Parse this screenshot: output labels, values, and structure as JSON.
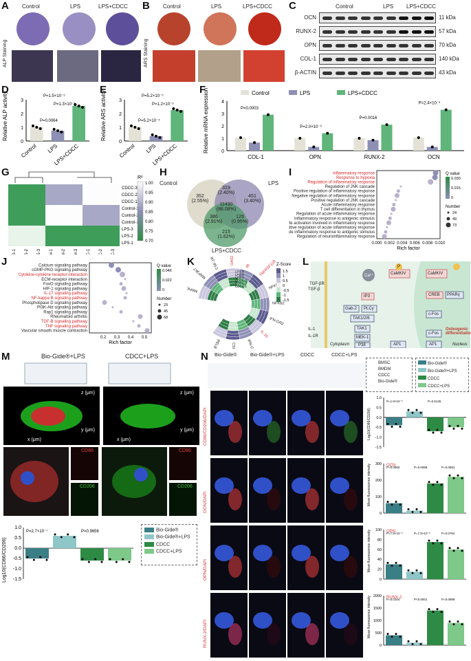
{
  "panelA": {
    "letter": "A",
    "side": "ALP Staining",
    "groups": [
      "Control",
      "LPS",
      "LPS+CDCC"
    ]
  },
  "panelB": {
    "letter": "B",
    "side": "ARS Staining",
    "groups": [
      "Control",
      "LPS",
      "LPS+CDCC"
    ]
  },
  "panelC": {
    "letter": "C",
    "groups": [
      "Control",
      "LPS",
      "LPS+CDCC"
    ],
    "rows": [
      {
        "name": "OCN",
        "kda": "11 kDa"
      },
      {
        "name": "RUNX-2",
        "kda": "57 kDa"
      },
      {
        "name": "OPN",
        "kda": "70 kDa"
      },
      {
        "name": "COL-1",
        "kda": "140 kDa"
      },
      {
        "name": "β-ACTIN",
        "kda": "43 kDa"
      }
    ]
  },
  "panelD": {
    "letter": "D"
  },
  "panelE": {
    "letter": "E"
  },
  "panelF": {
    "letter": "F"
  },
  "panelG": {
    "letter": "G",
    "legend_title": "R²",
    "ticks": [
      "1.00",
      "0.95",
      "0.90",
      "0.85",
      "0.80",
      "0.75",
      "0.70"
    ],
    "rows": [
      "CDCC-3",
      "CDCC-2",
      "CDCC-1",
      "Control-3",
      "Control-2",
      "Control-1",
      "LPS-3",
      "LPS-2",
      "LPS-1"
    ],
    "cols": [
      "LPS-1",
      "LPS-2",
      "LPS-3",
      "Control-1",
      "Control-2",
      "Control-3",
      "CDCC-1",
      "CDCC-2",
      "CDCC-3"
    ]
  },
  "panelH": {
    "letter": "H",
    "sets": [
      "Control",
      "LPS",
      "LPS+CDCC"
    ],
    "regions": [
      {
        "n": "352",
        "p": "(2.55%)"
      },
      {
        "n": "319",
        "p": "(2.40%)"
      },
      {
        "n": "451",
        "p": "(3.40%)"
      },
      {
        "n": "11430",
        "p": "(86.08%)"
      },
      {
        "n": "386",
        "p": "(2.91%)"
      },
      {
        "n": "126",
        "p": "(0.95%)"
      },
      {
        "n": "215",
        "p": "(1.62%)"
      }
    ]
  },
  "panelI": {
    "letter": "I",
    "xlabel": "Rich factor",
    "ticks": [
      "0.000",
      "0.002",
      "0.004",
      "0.006",
      "0.008",
      "0.010"
    ],
    "qtitle": "Q value",
    "qticks": [
      "0.030",
      "0.015",
      "0"
    ],
    "ntitle": "Number",
    "nvals": [
      "24",
      "49",
      "73"
    ]
  },
  "panelJ": {
    "letter": "J",
    "xlabel": "Rich factor",
    "ticks": [
      "0.2",
      "0.3",
      "0.4",
      "0.5"
    ],
    "qtitle": "Q value",
    "qticks": [
      "0.046",
      "0.022",
      "0"
    ],
    "ntitle": "Number",
    "nvals": [
      "23",
      "45",
      "68"
    ]
  },
  "panelK": {
    "letter": "K",
    "ztitle": "Z-Score",
    "zticks": [
      "1.5",
      "1",
      "0.5",
      "0",
      "-0.5",
      "-1",
      "-1.5"
    ],
    "samples": [
      "CDCC-1",
      "CDCC-2",
      "CDCC-3",
      "LPS-1",
      "LPS-2",
      "LPS-3"
    ],
    "genes": [
      "MAPK1",
      "MAP3K7",
      "CSF-1R",
      "OAS2",
      "Ifit",
      "TNFRSF11B",
      "NFKB1",
      "NFKB2",
      "IFN-GR2",
      "IL-10",
      "IFN-GR1",
      "CSF-1",
      "RELB"
    ]
  },
  "panelL": {
    "letter": "L",
    "nodes": {
      "tgfbr": "TGF-βR",
      "tgfb": "TGF-β",
      "ca": "Ca²⁺",
      "camkiv1": "CaMKIV",
      "camkiv2": "CaMKIV",
      "ip3": "IP3",
      "gab2": "Gab-2",
      "plcg": "PLCγ",
      "tak12": "TAK1/2/6",
      "tak1": "TAK1",
      "mek1": "MEK-1",
      "il1": "IL-1",
      "il1r": "IL-1R",
      "p38": "P38",
      "ap1a": "AP1",
      "ap1b": "AP1",
      "creb": "CREB",
      "ppar": "PPARγ",
      "cfos1": "c-Fos",
      "cfos2": "c-Fos",
      "osteo": "Osteogenic differentiation",
      "cytoplasm": "Cytoplasm",
      "nucleus": "Nucleus",
      "p": "P"
    }
  },
  "panelM": {
    "letter": "M",
    "titles": [
      "Bio-Gide®+LPS",
      "CDCC+LPS"
    ],
    "axes": [
      "z (μm)",
      "x (μm)",
      "y (μm)"
    ],
    "cd86": "CD86",
    "cd206": "CD206",
    "ylabel": "Log10(CD86/CD206)",
    "legend": [
      "Bio-Gide®",
      "Bio-Gide®+LPS",
      "CDCC",
      "CDCC+LPS"
    ]
  },
  "panelN": {
    "letter": "N",
    "titles": [
      "Bio-Gide®",
      "Bio-Gide®+LPS",
      "CDCC",
      "CDCC+LPS"
    ],
    "rows": [
      "CD86/CD206/DAPI",
      "OCN/DAPI",
      "OPN/DAPI",
      "RUNX-2/DAPI"
    ],
    "legend": [
      "BMSC",
      "BMDM",
      "CDCC",
      "Bio-Gide®"
    ],
    "legend2": [
      "Bio-Gide®",
      "Bio-Gide®+LPS",
      "CDCC",
      "CDCC+LPS"
    ],
    "ylabels": [
      "Log10(CD86/CD206)",
      "Mean fluorescence intensity",
      "Mean fluorescence intensity",
      "Mean fluorescence intensity"
    ]
  },
  "chart_data": [
    {
      "id": "D",
      "type": "bar",
      "categories": [
        "Control",
        "LPS",
        "LPS+CDCC"
      ],
      "values": [
        1.0,
        0.75,
        2.55
      ],
      "ylabel": "Relative ALP activity",
      "ylim": [
        0,
        3
      ],
      "yticks": [
        "0",
        "1",
        "2",
        "3"
      ],
      "annotations": [
        "P=0.0064",
        "P=1.3×10⁻⁵",
        "P=1.5×10⁻⁵"
      ]
    },
    {
      "id": "E",
      "type": "bar",
      "categories": [
        "Control",
        "LPS",
        "LPS+CDCC"
      ],
      "values": [
        1.0,
        0.35,
        2.25
      ],
      "ylabel": "Relative ARS activity",
      "ylim": [
        0,
        3
      ],
      "yticks": [
        "0",
        "1",
        "2",
        "3"
      ],
      "annotations": [
        "P=5.2×10⁻⁵",
        "P=1.2×10⁻⁵",
        "P=5.2×10⁻⁵"
      ]
    },
    {
      "id": "F",
      "type": "bar",
      "categories": [
        "COL-1",
        "OPN",
        "RUNX-2",
        "OCN"
      ],
      "ylabel": "Relative mRNA expression",
      "ylim": [
        0,
        4
      ],
      "yticks": [
        "0",
        "1",
        "2",
        "3",
        "4"
      ],
      "series": [
        {
          "name": "Control",
          "values": [
            1.05,
            1.0,
            1.0,
            1.05
          ]
        },
        {
          "name": "LPS",
          "values": [
            0.65,
            0.3,
            0.85,
            0.3
          ]
        },
        {
          "name": "LPS+CDCC",
          "values": [
            2.9,
            1.4,
            2.1,
            3.3
          ]
        }
      ],
      "annotations": [
        "P=0.0003",
        "P=2.0×10⁻⁶",
        "P=0.0016",
        "P=2.4×10⁻⁵"
      ]
    },
    {
      "id": "I",
      "type": "scatter",
      "xlabel": "Rich factor",
      "terms": [
        "Inflammatory response",
        "Response to hypoxia",
        "Regulation of inflammatory response",
        "Regulation of JNK cascade",
        "Positive regulation of inflammatory response",
        "Negative regulation of inflammatory response",
        "Positive regulation of JNK cascade",
        "Acute inflammatory response",
        "T cell differentiation in thymus",
        "Regulation of acute inflammatory response",
        "Inflammatory response to antigenic stimulus",
        "Leukocyte activation involved in inflammatory response",
        "Positive regulation of acute inflammatory response",
        "Acute inflammatory response to antigenic stimulus",
        "Regulation of neuroinflammatory response"
      ],
      "x": [
        0.0093,
        0.0092,
        0.0085,
        0.0038,
        0.0034,
        0.0032,
        0.003,
        0.0027,
        0.0026,
        0.0023,
        0.0021,
        0.0019,
        0.0016,
        0.0014,
        0.0012
      ],
      "highlight": [
        true,
        true,
        true,
        false,
        false,
        false,
        false,
        false,
        false,
        false,
        false,
        false,
        false,
        false,
        false
      ]
    },
    {
      "id": "J",
      "type": "scatter",
      "xlabel": "Rich factor",
      "terms": [
        "Calcium signaling pathway",
        "cGMP-PKG signaling pathway",
        "Cytokine-cytokine receptor interaction",
        "ECM-receptor interaction",
        "FoxO signaling pathway",
        "HIF-1 signaling pathway",
        "IL-17 signaling pathway",
        "NF-kappa B signaling pathway",
        "Phospholipase D signaling pathway",
        "PI3K-Akt signaling pathway",
        "Rap1 signaling pathway",
        "Rheumatoid arthritis",
        "TGF-B signaling pathway",
        "TNF signaling pathway",
        "Vascular smooth muscle contraction"
      ],
      "x": [
        0.26,
        0.31,
        0.34,
        0.36,
        0.33,
        0.35,
        0.37,
        0.36,
        0.21,
        0.27,
        0.33,
        0.47,
        0.42,
        0.46,
        0.52
      ],
      "highlight": [
        false,
        false,
        true,
        false,
        false,
        false,
        true,
        true,
        false,
        false,
        false,
        false,
        true,
        true,
        false
      ]
    },
    {
      "id": "M-bar",
      "type": "bar",
      "categories": [
        "Bio-Gide®",
        "Bio-Gide®+LPS",
        "CDCC",
        "CDCC+LPS"
      ],
      "values": [
        -0.5,
        0.6,
        -0.6,
        -0.6
      ],
      "ylim": [
        -1.5,
        1.0
      ],
      "yticks": [
        "1.0",
        "0.5",
        "0.0",
        "-0.5",
        "-1.0",
        "-1.5"
      ],
      "annotations": [
        "P=2.7×10⁻⁷",
        "P=0.9656"
      ]
    },
    {
      "id": "N1",
      "type": "bar",
      "categories": [
        "Bio-Gide®",
        "Bio-Gide®+LPS",
        "CDCC",
        "CDCC+LPS"
      ],
      "values": [
        -0.4,
        0.3,
        -0.7,
        -0.5
      ],
      "ylim": [
        -1.5,
        1.0
      ],
      "yticks": [
        "1.0",
        "0.5",
        "0.0",
        "-0.5",
        "-1.0",
        "-1.5"
      ],
      "annotations": [
        "P=1.8×10⁻⁶",
        "P=0.6145"
      ]
    },
    {
      "id": "N2",
      "type": "bar",
      "categories": [
        "Bio-Gide®",
        "Bio-Gide®+LPS",
        "CDCC",
        "CDCC+LPS"
      ],
      "values": [
        60,
        15,
        180,
        220
      ],
      "ylim": [
        0,
        300
      ],
      "yticks": [
        "300",
        "200",
        "100",
        "0"
      ],
      "annotations": [
        "P=0.0060",
        "P=0.0068",
        "P=0.0081"
      ]
    },
    {
      "id": "N3",
      "type": "bar",
      "categories": [
        "Bio-Gide®",
        "Bio-Gide®+LPS",
        "CDCC",
        "CDCC+LPS"
      ],
      "values": [
        30,
        15,
        75,
        60
      ],
      "ylim": [
        0,
        100
      ],
      "yticks": [
        "100",
        "80",
        "60",
        "40",
        "20",
        "0"
      ],
      "annotations": [
        "P=7.5×10⁻⁵",
        "P=7.0×10⁻⁵",
        "P=0.0754"
      ]
    },
    {
      "id": "N4",
      "type": "bar",
      "categories": [
        "Bio-Gide®",
        "Bio-Gide®+LPS",
        "CDCC",
        "CDCC+LPS"
      ],
      "values": [
        400,
        100,
        1400,
        900
      ],
      "ylim": [
        0,
        2000
      ],
      "yticks": [
        "2000",
        "1500",
        "1000",
        "500",
        "0"
      ],
      "annotations": [
        "P=0.0104",
        "P<0.0001",
        "P=0.0699"
      ]
    }
  ]
}
